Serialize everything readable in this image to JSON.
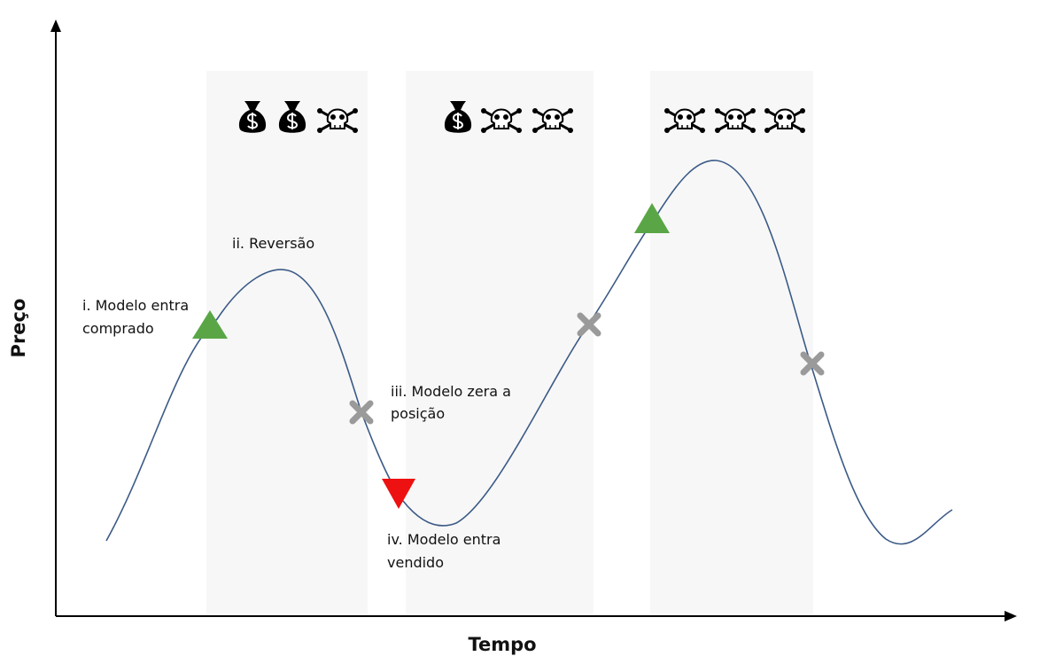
{
  "axis_labels": {
    "y": "Preço",
    "x": "Tempo"
  },
  "annotations": [
    {
      "lines": [
        "i. Modelo entra",
        "comprado"
      ]
    },
    {
      "lines": [
        "ii. Reversão"
      ]
    },
    {
      "lines": [
        "iii. Modelo zera a",
        "posição"
      ]
    },
    {
      "lines": [
        "iv. Modelo entra",
        "vendido"
      ]
    }
  ]
}
